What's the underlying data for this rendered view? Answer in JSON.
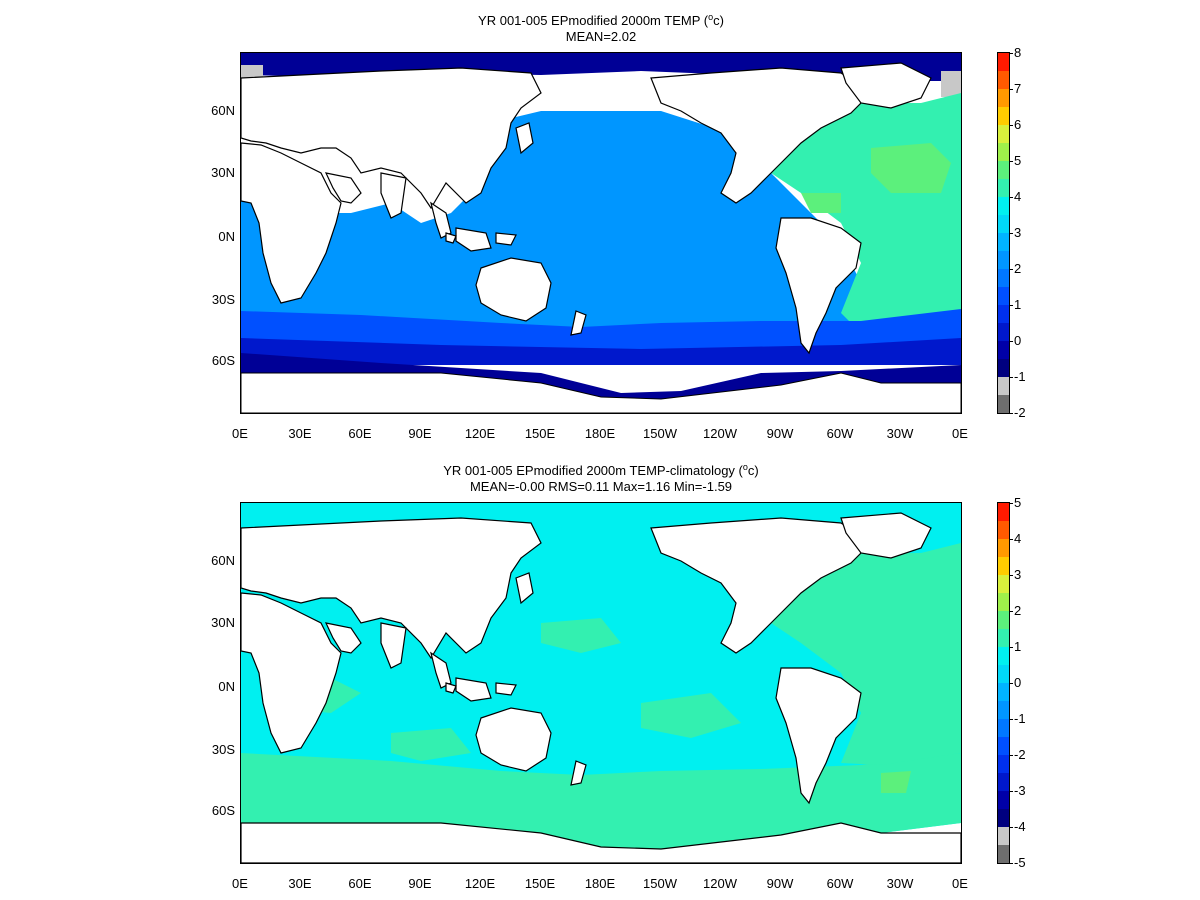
{
  "panels": [
    {
      "id": "top",
      "title_main": "YR 001-005 EPmodified 2000m TEMP (",
      "title_super": "o",
      "title_after": "c)",
      "subtitle": "MEAN=2.02",
      "lat_ticks": [
        "60N",
        "30N",
        "0N",
        "30S",
        "60S"
      ],
      "lon_ticks": [
        "0E",
        "30E",
        "60E",
        "90E",
        "120E",
        "150E",
        "180E",
        "150W",
        "120W",
        "90W",
        "60W",
        "30W",
        "0E"
      ],
      "colorbar": {
        "labels": [
          "8",
          "7",
          "6",
          "5",
          "4",
          "3",
          "2",
          "1",
          "0",
          "-1",
          "-2"
        ],
        "colors": [
          "#ff1a00",
          "#ff5a00",
          "#ff9900",
          "#ffcc00",
          "#d9f03c",
          "#9ff04a",
          "#5cf07c",
          "#33f0b0",
          "#00f0f0",
          "#00d8f8",
          "#00b4ff",
          "#0096ff",
          "#0078ff",
          "#0050ff",
          "#0030ee",
          "#0018cc",
          "#0000a8",
          "#000080",
          "#c8c8c8",
          "#6e6e6e"
        ]
      },
      "fields": {
        "southern_ocean_deep": "#000096",
        "southern_ocean": "#0018cc",
        "southern_mid": "#0050ff",
        "indian_pacific": "#0096ff",
        "tropical_pacific": "#0088ff",
        "atlantic": "#33f0b0",
        "atlantic_north": "#5cf07c",
        "arctic": "#000096",
        "arctic_grey": "#c8c8c8"
      }
    },
    {
      "id": "bottom",
      "title_main": "YR 001-005 EPmodified 2000m TEMP-climatology (",
      "title_super": "o",
      "title_after": "c)",
      "subtitle": "MEAN=-0.00   RMS=0.11   Max=1.16   Min=-1.59",
      "lat_ticks": [
        "60N",
        "30N",
        "0N",
        "30S",
        "60S"
      ],
      "lon_ticks": [
        "0E",
        "30E",
        "60E",
        "90E",
        "120E",
        "150E",
        "180E",
        "150W",
        "120W",
        "90W",
        "60W",
        "30W",
        "0E"
      ],
      "colorbar": {
        "labels": [
          "5",
          "4",
          "3",
          "2",
          "1",
          "0",
          "-1",
          "-2",
          "-3",
          "-4",
          "-5"
        ],
        "colors": [
          "#ff1a00",
          "#ff5a00",
          "#ff9900",
          "#ffcc00",
          "#d9f03c",
          "#9ff04a",
          "#5cf07c",
          "#33f0b0",
          "#00f0f0",
          "#00d8f8",
          "#00b4ff",
          "#0096ff",
          "#0078ff",
          "#0050ff",
          "#0030ee",
          "#0018cc",
          "#0000a8",
          "#000080",
          "#c8c8c8",
          "#6e6e6e"
        ]
      },
      "fields": {
        "base": "#00f0f0",
        "southern": "#33f0b0",
        "atlantic": "#33f0b0",
        "patches": "#5cf07c"
      }
    }
  ]
}
